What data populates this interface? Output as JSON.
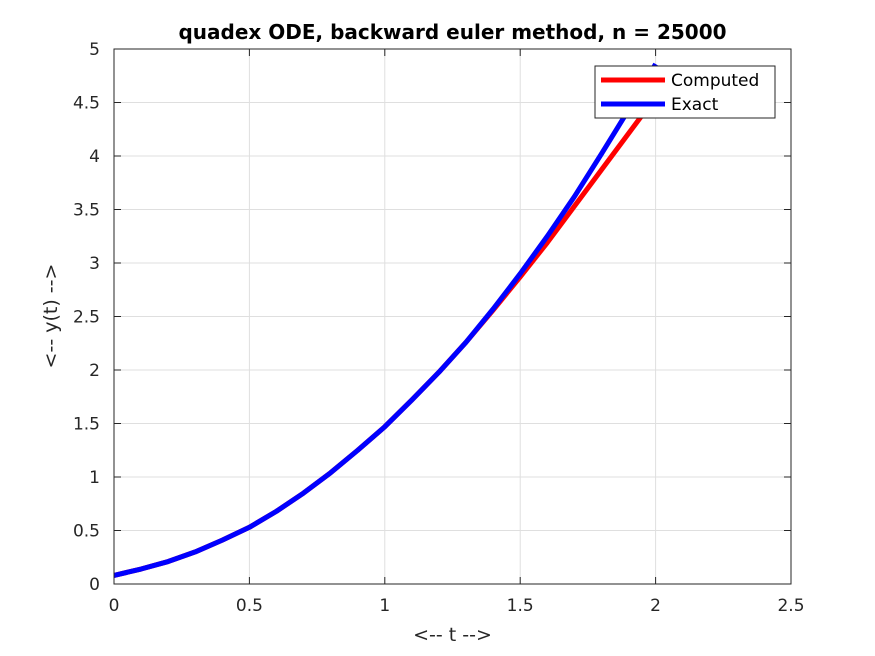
{
  "chart_data": {
    "type": "line",
    "title": "quadex ODE, backward euler method, n = 25000",
    "xlabel": "<-- t -->",
    "ylabel": "<-- y(t) -->",
    "xlim": [
      0,
      2.5
    ],
    "ylim": [
      0,
      5
    ],
    "xticks": [
      0,
      0.5,
      1,
      1.5,
      2,
      2.5
    ],
    "xtick_labels": [
      "0",
      "0.5",
      "1",
      "1.5",
      "2",
      "2.5"
    ],
    "yticks": [
      0,
      0.5,
      1,
      1.5,
      2,
      2.5,
      3,
      3.5,
      4,
      4.5,
      5
    ],
    "ytick_labels": [
      "0",
      "0.5",
      "1",
      "1.5",
      "2",
      "2.5",
      "3",
      "3.5",
      "4",
      "4.5",
      "5"
    ],
    "grid": true,
    "legend_position": "top-right",
    "series": [
      {
        "name": "Computed",
        "color": "#ff0000",
        "x": [
          0,
          0.1,
          0.2,
          0.3,
          0.4,
          0.5,
          0.6,
          0.7,
          0.8,
          0.9,
          1.0,
          1.1,
          1.2,
          1.3,
          1.4,
          1.5,
          1.6,
          1.7,
          1.8,
          1.9,
          2.0
        ],
        "y": [
          0.08,
          0.14,
          0.21,
          0.3,
          0.41,
          0.53,
          0.68,
          0.85,
          1.04,
          1.25,
          1.47,
          1.72,
          1.98,
          2.26,
          2.56,
          2.87,
          3.19,
          3.53,
          3.87,
          4.21,
          4.55
        ]
      },
      {
        "name": "Exact",
        "color": "#0000ff",
        "x": [
          0,
          0.1,
          0.2,
          0.3,
          0.4,
          0.5,
          0.6,
          0.7,
          0.8,
          0.9,
          1.0,
          1.1,
          1.2,
          1.3,
          1.4,
          1.5,
          1.6,
          1.7,
          1.8,
          1.9,
          2.0
        ],
        "y": [
          0.08,
          0.14,
          0.21,
          0.3,
          0.41,
          0.53,
          0.68,
          0.85,
          1.04,
          1.25,
          1.47,
          1.72,
          1.98,
          2.26,
          2.57,
          2.9,
          3.25,
          3.62,
          4.02,
          4.43,
          4.86
        ]
      }
    ]
  }
}
